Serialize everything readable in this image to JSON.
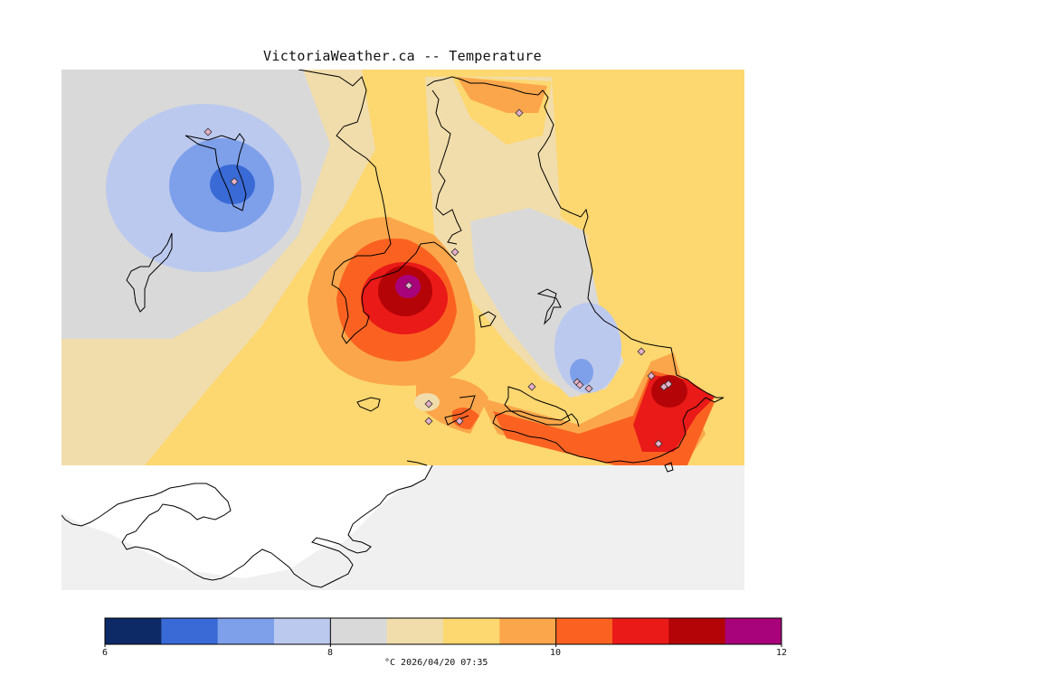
{
  "title": "VictoriaWeather.ca -- Temperature",
  "legend": {
    "ticks": [
      "6",
      "8",
      "10",
      "12"
    ],
    "units_time": "°C  2026/04/20 07:35",
    "colors": [
      "#0d2a66",
      "#3a6ad6",
      "#7ea0ea",
      "#bcc9ee",
      "#d9d9d9",
      "#f1ddab",
      "#fdd770",
      "#fba64a",
      "#fb6221",
      "#e91a18",
      "#b50407",
      "#a8037a"
    ]
  },
  "map": {
    "background": "#f0f0f0",
    "no_data_land": "#ffffff",
    "stations_count": 17
  }
}
